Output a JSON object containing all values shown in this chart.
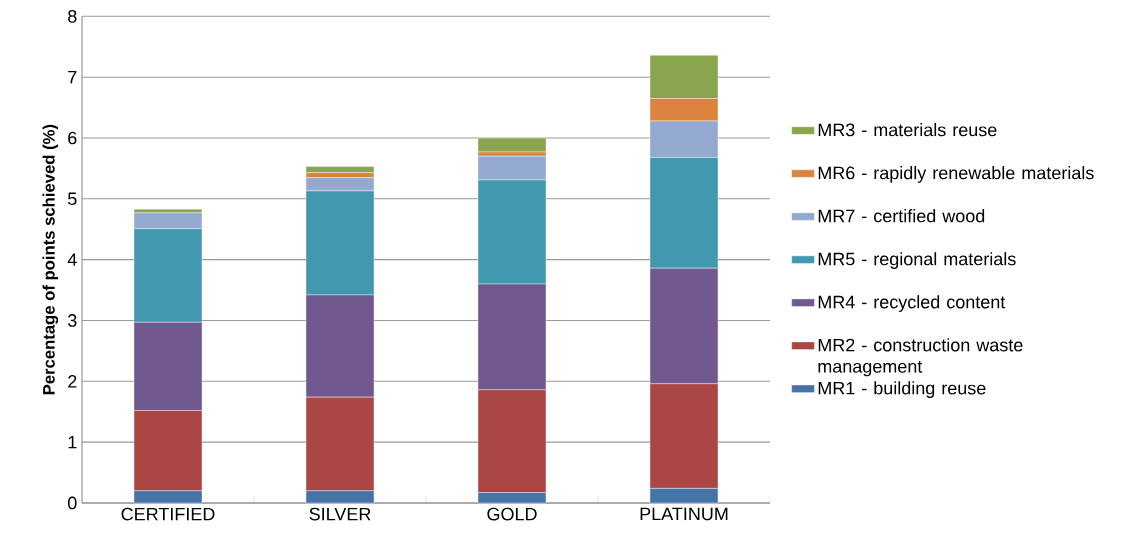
{
  "chart_data": {
    "type": "bar",
    "stacked": true,
    "ylabel": "Percentage of points schieved (%)",
    "categories": [
      "CERTIFIED",
      "SILVER",
      "GOLD",
      "PLATINUM"
    ],
    "ylim": [
      0,
      8
    ],
    "yticks": [
      0,
      1,
      2,
      3,
      4,
      5,
      6,
      7,
      8
    ],
    "grid": "y",
    "legend": "right",
    "series": [
      {
        "name": "MR1 - building reuse",
        "color": "#4572a7",
        "values": [
          0.2,
          0.2,
          0.17,
          0.24
        ]
      },
      {
        "name": "MR2 - construction waste management",
        "color": "#aa4643",
        "values": [
          1.32,
          1.54,
          1.69,
          1.72
        ]
      },
      {
        "name": "MR4 - recycled content",
        "color": "#71588f",
        "values": [
          1.45,
          1.68,
          1.74,
          1.9
        ]
      },
      {
        "name": "MR5 - regional materials",
        "color": "#4198af",
        "values": [
          1.54,
          1.71,
          1.71,
          1.82
        ]
      },
      {
        "name": "MR7 - certified wood",
        "color": "#93a9cf",
        "values": [
          0.26,
          0.22,
          0.39,
          0.6
        ]
      },
      {
        "name": "MR6 - rapidly renewable materials",
        "color": "#db843d",
        "values": [
          null,
          0.08,
          0.07,
          0.37
        ]
      },
      {
        "name": "MR3 - materials reuse",
        "color": "#89a54e",
        "values": [
          0.06,
          0.1,
          0.23,
          0.71
        ]
      }
    ]
  }
}
